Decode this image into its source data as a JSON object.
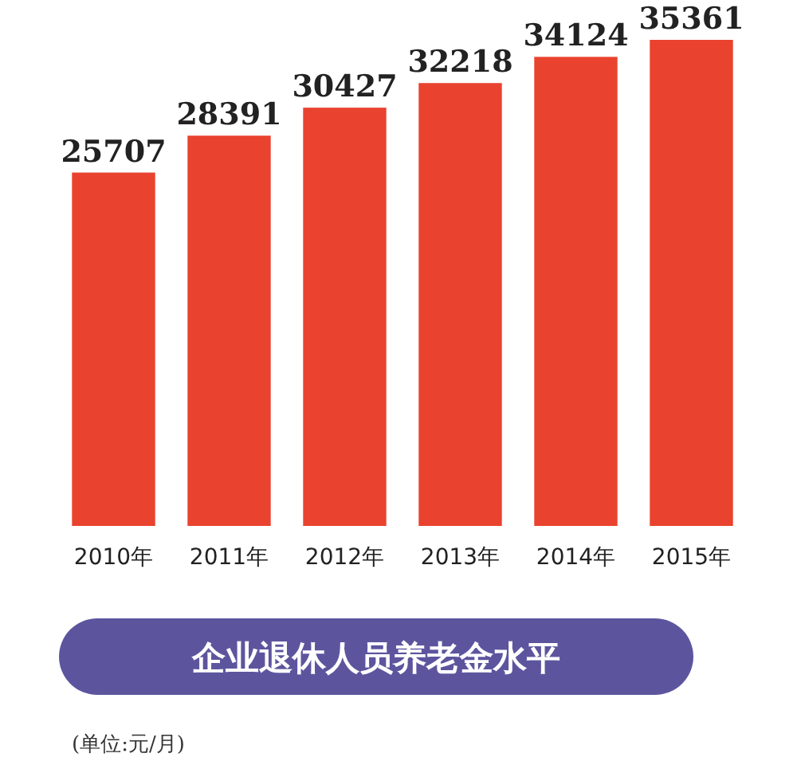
{
  "chart_data": {
    "type": "bar",
    "title": "企业退休人员养老金水平",
    "categories": [
      "2010年",
      "2011年",
      "2012年",
      "2013年",
      "2014年",
      "2015年"
    ],
    "values": [
      25707,
      28391,
      30427,
      32218,
      34124,
      35361
    ],
    "color": "#e9432f",
    "data_labels": true,
    "annotations": [
      "(单位:元/月)"
    ]
  }
}
